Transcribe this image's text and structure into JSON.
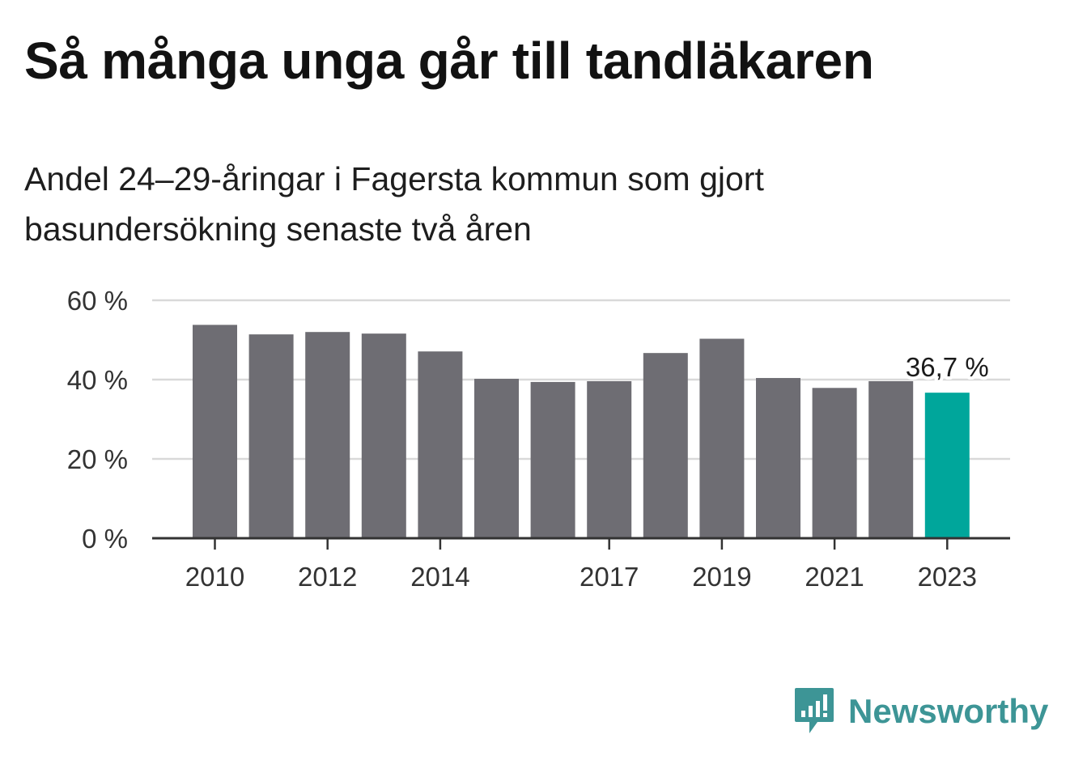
{
  "title": "Så många unga går till tandläkaren",
  "subtitle": "Andel 24–29-åringar i Fagersta kommun som gjort basundersökning senaste två åren",
  "brand": {
    "name": "Newsworthy",
    "icon": "newsworthy-logo-icon",
    "color": "#3d9596"
  },
  "colors": {
    "bar": "#6e6d73",
    "highlight": "#00a69b",
    "grid": "#d9d9d9",
    "axis": "#333333"
  },
  "chart_data": {
    "type": "bar",
    "x": [
      2010,
      2011,
      2012,
      2013,
      2014,
      2015,
      2016,
      2017,
      2018,
      2019,
      2020,
      2021,
      2022,
      2023
    ],
    "values": [
      53.8,
      51.4,
      52.0,
      51.6,
      47.1,
      40.2,
      39.4,
      39.6,
      46.7,
      50.3,
      40.4,
      37.9,
      39.6,
      36.7
    ],
    "x_tick_labels": [
      "2010",
      "2012",
      "2014",
      "2017",
      "2019",
      "2021",
      "2023"
    ],
    "x_tick_values": [
      2010,
      2012,
      2014,
      2017,
      2019,
      2021,
      2023
    ],
    "y_tick_labels": [
      "0 %",
      "20 %",
      "40 %",
      "60 %"
    ],
    "y_tick_values": [
      0,
      20,
      40,
      60
    ],
    "ylim": [
      0,
      60
    ],
    "grid": true,
    "highlight": {
      "x": 2023,
      "label": "36,7 %"
    },
    "xlabel": "",
    "ylabel": ""
  }
}
